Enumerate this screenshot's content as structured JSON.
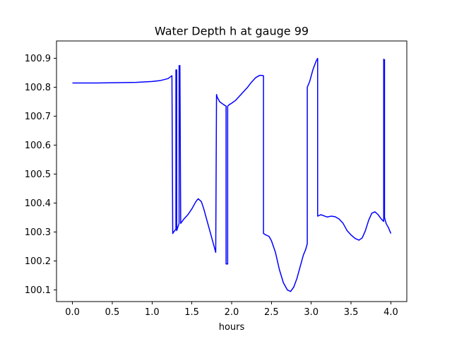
{
  "chart_data": {
    "type": "line",
    "title": "Water Depth h at gauge 99",
    "xlabel": "hours",
    "ylabel": "",
    "xlim": [
      -0.2,
      4.2
    ],
    "ylim": [
      100.06,
      100.96
    ],
    "xticks": [
      0.0,
      0.5,
      1.0,
      1.5,
      2.0,
      2.5,
      3.0,
      3.5,
      4.0
    ],
    "xtick_labels": [
      "0.0",
      "0.5",
      "1.0",
      "1.5",
      "2.0",
      "2.5",
      "3.0",
      "3.5",
      "4.0"
    ],
    "yticks": [
      100.1,
      100.2,
      100.3,
      100.4,
      100.5,
      100.6,
      100.7,
      100.8,
      100.9
    ],
    "ytick_labels": [
      "100.1",
      "100.2",
      "100.3",
      "100.4",
      "100.5",
      "100.6",
      "100.7",
      "100.8",
      "100.9"
    ],
    "grid": false,
    "series": [
      {
        "color": "#0000ff",
        "x": [
          0.0,
          0.3,
          0.6,
          0.8,
          1.0,
          1.1,
          1.2,
          1.25,
          1.26,
          1.27,
          1.3,
          1.3,
          1.31,
          1.31,
          1.34,
          1.34,
          1.35,
          1.36,
          1.4,
          1.45,
          1.5,
          1.55,
          1.58,
          1.62,
          1.65,
          1.7,
          1.75,
          1.8,
          1.81,
          1.82,
          1.85,
          1.9,
          1.93,
          1.93,
          1.95,
          1.95,
          1.97,
          2.0,
          2.05,
          2.1,
          2.15,
          2.2,
          2.25,
          2.3,
          2.35,
          2.38,
          2.4,
          2.4,
          2.43,
          2.47,
          2.5,
          2.55,
          2.6,
          2.65,
          2.7,
          2.74,
          2.78,
          2.82,
          2.86,
          2.9,
          2.93,
          2.95,
          2.95,
          2.98,
          3.02,
          3.06,
          3.08,
          3.08,
          3.12,
          3.15,
          3.2,
          3.25,
          3.3,
          3.35,
          3.4,
          3.45,
          3.5,
          3.55,
          3.6,
          3.64,
          3.68,
          3.72,
          3.76,
          3.8,
          3.84,
          3.88,
          3.91,
          3.91,
          3.92,
          3.92,
          3.94,
          3.97,
          4.0
        ],
        "y": [
          100.815,
          100.815,
          100.816,
          100.817,
          100.82,
          100.823,
          100.83,
          100.84,
          100.295,
          100.3,
          100.31,
          100.86,
          100.86,
          100.305,
          100.33,
          100.875,
          100.875,
          100.33,
          100.345,
          100.36,
          100.38,
          100.405,
          100.415,
          100.405,
          100.38,
          100.33,
          100.28,
          100.23,
          100.775,
          100.765,
          100.75,
          100.74,
          100.735,
          100.19,
          100.19,
          100.735,
          100.74,
          100.745,
          100.755,
          100.77,
          100.785,
          100.8,
          100.818,
          100.833,
          100.841,
          100.841,
          100.84,
          100.295,
          100.29,
          100.285,
          100.27,
          100.23,
          100.17,
          100.125,
          100.1,
          100.095,
          100.11,
          100.14,
          100.18,
          100.22,
          100.24,
          100.26,
          100.8,
          100.82,
          100.86,
          100.89,
          100.9,
          100.355,
          100.36,
          100.357,
          100.352,
          100.355,
          100.353,
          100.345,
          100.33,
          100.305,
          100.29,
          100.278,
          100.272,
          100.28,
          100.305,
          100.34,
          100.365,
          100.37,
          100.36,
          100.345,
          100.337,
          100.897,
          100.895,
          100.35,
          100.33,
          100.315,
          100.295
        ]
      }
    ]
  }
}
